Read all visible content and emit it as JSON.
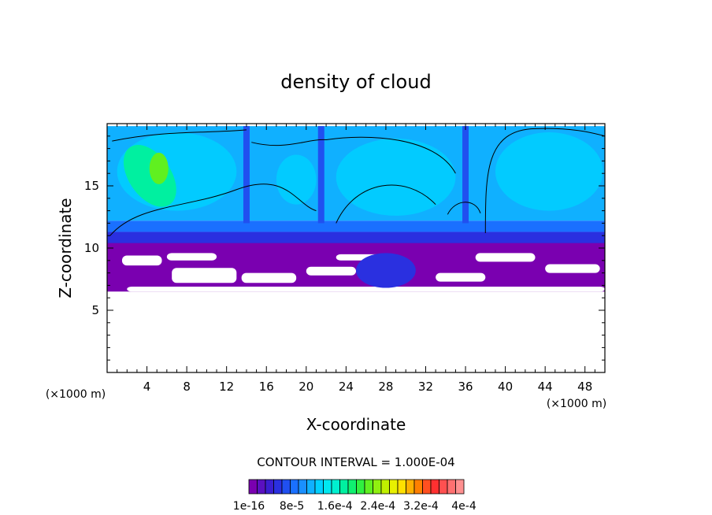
{
  "chart_data": {
    "type": "heatmap",
    "title": "density of cloud",
    "xlabel": "X-coordinate",
    "ylabel": "Z-coordinate",
    "x_unit": "(×1000 m)",
    "y_unit": "(×1000 m)",
    "xlim": [
      0,
      50
    ],
    "ylim": [
      0,
      20
    ],
    "x_ticks": [
      4,
      8,
      12,
      16,
      20,
      24,
      28,
      32,
      36,
      40,
      44,
      48
    ],
    "y_ticks": [
      5,
      10,
      15
    ],
    "contour_interval_text": "CONTOUR INTERVAL = 1.000E-04",
    "colorbar_labels": [
      "1e-16",
      "8e-5",
      "1.6e-4",
      "2.4e-4",
      "3.2e-4",
      "4e-4"
    ],
    "colorbar_colors": [
      "#7a00b0",
      "#5a10c0",
      "#3a1ed0",
      "#2a30e0",
      "#2050f0",
      "#1a70ff",
      "#1a90ff",
      "#10b0ff",
      "#00d0ff",
      "#00e8f0",
      "#00f0d0",
      "#00f0a0",
      "#10f070",
      "#30f040",
      "#60f020",
      "#90f010",
      "#c0f000",
      "#e8f000",
      "#ffe000",
      "#ffb000",
      "#ff8000",
      "#ff5020",
      "#ff3030",
      "#ff5050",
      "#ff7070",
      "#ff9090"
    ],
    "regions": [
      {
        "name": "upper-cloud",
        "x": [
          0,
          50
        ],
        "z": [
          10.5,
          19.8
        ],
        "level": "1.6e-4"
      },
      {
        "name": "dense-core",
        "x": [
          2.5,
          5.5
        ],
        "z": [
          14,
          17.5
        ],
        "level": "2.4e-4"
      },
      {
        "name": "cloud-base",
        "x": [
          0,
          50
        ],
        "z": [
          6.5,
          10.5
        ],
        "level": "1e-16"
      },
      {
        "name": "embedded-cell",
        "x": [
          25,
          31
        ],
        "z": [
          7,
          9
        ],
        "level": "8e-5"
      }
    ]
  }
}
